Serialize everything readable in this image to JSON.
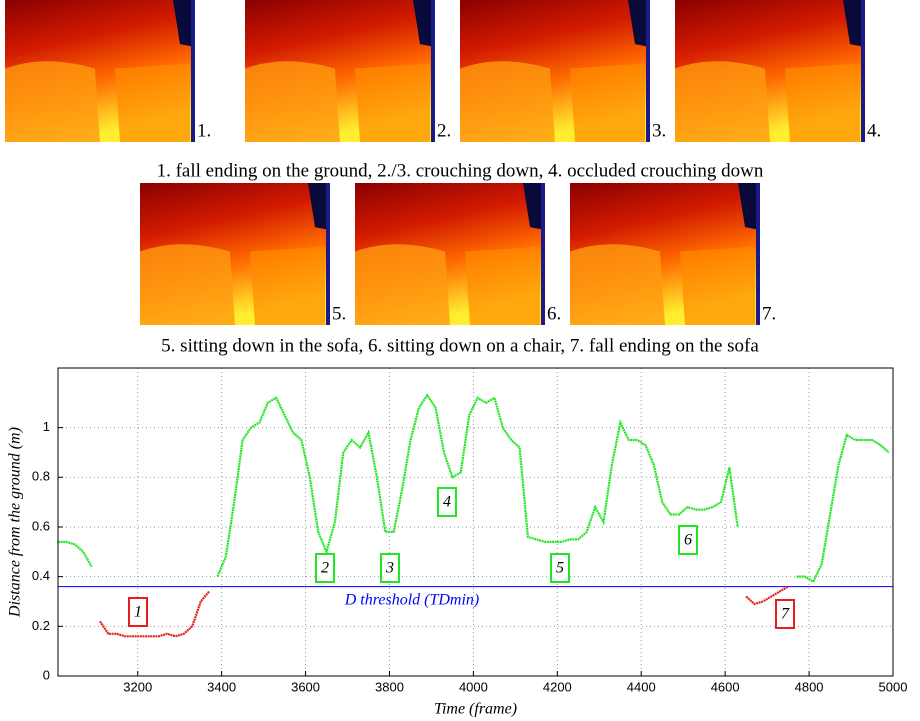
{
  "figure": {
    "images": [
      {
        "label": "1."
      },
      {
        "label": "2."
      },
      {
        "label": "3."
      },
      {
        "label": "4."
      },
      {
        "label": "5."
      },
      {
        "label": "6."
      },
      {
        "label": "7."
      }
    ],
    "captions": [
      "1. fall ending on the ground, 2./3. crouching down, 4. occluded crouching down",
      "5. sitting down in the sofa, 6. sitting down on a chair, 7. fall ending on the sofa"
    ]
  },
  "chart_data": {
    "type": "line",
    "xlabel": "Time (frame)",
    "ylabel": "Distance from the ground (m)",
    "x": [
      3010,
      3030,
      3050,
      3070,
      3090,
      3110,
      3130,
      3150,
      3170,
      3190,
      3210,
      3230,
      3250,
      3270,
      3290,
      3310,
      3330,
      3350,
      3370,
      3390,
      3410,
      3430,
      3450,
      3470,
      3490,
      3510,
      3530,
      3550,
      3570,
      3590,
      3610,
      3630,
      3650,
      3670,
      3690,
      3710,
      3730,
      3750,
      3770,
      3790,
      3810,
      3830,
      3850,
      3870,
      3890,
      3910,
      3930,
      3950,
      3970,
      3990,
      4010,
      4030,
      4050,
      4070,
      4090,
      4110,
      4130,
      4150,
      4170,
      4190,
      4210,
      4230,
      4250,
      4270,
      4290,
      4310,
      4330,
      4350,
      4370,
      4390,
      4410,
      4430,
      4450,
      4470,
      4490,
      4510,
      4530,
      4550,
      4570,
      4590,
      4610,
      4630,
      4650,
      4670,
      4690,
      4710,
      4730,
      4750,
      4770,
      4790,
      4810,
      4830,
      4850,
      4870,
      4890,
      4910,
      4930,
      4950,
      4970,
      4990
    ],
    "series": [
      {
        "color": "#22e622",
        "values": [
          0.54,
          0.54,
          0.53,
          0.5,
          0.44,
          null,
          null,
          null,
          null,
          null,
          null,
          null,
          null,
          null,
          null,
          null,
          null,
          null,
          null,
          0.4,
          0.48,
          0.7,
          0.95,
          1.0,
          1.02,
          1.1,
          1.12,
          1.05,
          0.98,
          0.95,
          0.8,
          0.58,
          0.5,
          0.62,
          0.9,
          0.95,
          0.92,
          0.98,
          0.8,
          0.58,
          0.58,
          0.75,
          0.95,
          1.08,
          1.13,
          1.08,
          0.9,
          0.8,
          0.82,
          1.05,
          1.12,
          1.1,
          1.12,
          1.0,
          0.95,
          0.92,
          0.56,
          0.55,
          0.54,
          0.54,
          0.54,
          0.55,
          0.55,
          0.58,
          0.68,
          0.62,
          0.85,
          1.02,
          0.95,
          0.95,
          0.93,
          0.85,
          0.7,
          0.65,
          0.65,
          0.68,
          0.67,
          0.67,
          0.68,
          0.7,
          0.84,
          0.6,
          null,
          null,
          null,
          null,
          null,
          null,
          0.4,
          0.4,
          0.38,
          0.45,
          0.65,
          0.85,
          0.97,
          0.95,
          0.95,
          0.95,
          0.93,
          0.9
        ]
      },
      {
        "color": "#e61e1e",
        "values": [
          null,
          null,
          null,
          null,
          null,
          0.22,
          0.17,
          0.17,
          0.16,
          0.16,
          0.16,
          0.16,
          0.16,
          0.17,
          0.16,
          0.17,
          0.2,
          0.3,
          0.34,
          null,
          null,
          null,
          null,
          null,
          null,
          null,
          null,
          null,
          null,
          null,
          null,
          null,
          null,
          null,
          null,
          null,
          null,
          null,
          null,
          null,
          null,
          null,
          null,
          null,
          null,
          null,
          null,
          null,
          null,
          null,
          null,
          null,
          null,
          null,
          null,
          null,
          null,
          null,
          null,
          null,
          null,
          null,
          null,
          null,
          null,
          null,
          null,
          null,
          null,
          null,
          null,
          null,
          null,
          null,
          null,
          null,
          null,
          null,
          null,
          null,
          null,
          null,
          0.32,
          0.29,
          0.3,
          0.32,
          0.34,
          0.36,
          null,
          null,
          null,
          null,
          null,
          null,
          null,
          null,
          null,
          null,
          null,
          null
        ]
      }
    ],
    "threshold": {
      "value": 0.36,
      "label": "D threshold (TDmin)",
      "color": "#0000ff"
    },
    "annotations": [
      {
        "text": "1",
        "color": "#e61e1e"
      },
      {
        "text": "2",
        "color": "#22e622"
      },
      {
        "text": "3",
        "color": "#22e622"
      },
      {
        "text": "4",
        "color": "#22e622"
      },
      {
        "text": "5",
        "color": "#22e622"
      },
      {
        "text": "6",
        "color": "#22e622"
      },
      {
        "text": "7",
        "color": "#e61e1e"
      }
    ],
    "xlim": [
      3010,
      5000
    ],
    "ylim": [
      0,
      1.24
    ],
    "xticks": [
      3200,
      3400,
      3600,
      3800,
      4000,
      4200,
      4400,
      4600,
      4800,
      5000
    ],
    "yticks": [
      0,
      0.2,
      0.4,
      0.6,
      0.8,
      1
    ],
    "grid": true
  }
}
